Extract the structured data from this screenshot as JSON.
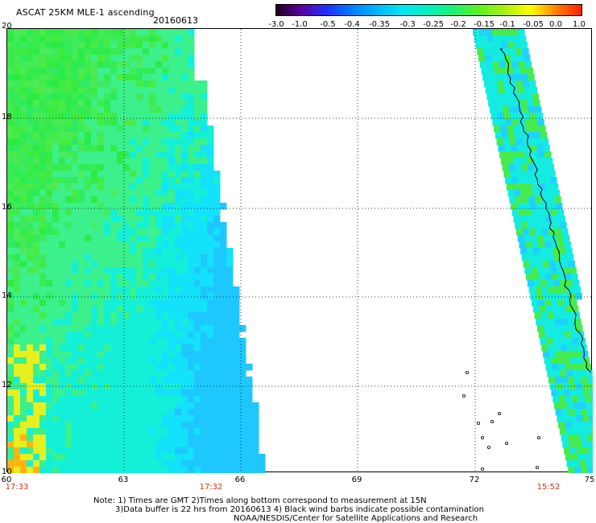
{
  "header": {
    "title": "ASCAT 25KM MLE-1 ascending",
    "date": "20160613"
  },
  "colorbar": {
    "labels": [
      "-3.0",
      "-1.0",
      "-0.5",
      "-0.4",
      "-0.35",
      "-0.3",
      "-0.25",
      "-0.2",
      "-0.15",
      "-0.1",
      "-0.05",
      "0.0",
      "1.0"
    ],
    "colors": [
      "#200020",
      "#5a00a0",
      "#2030ff",
      "#0080ff",
      "#00b8ff",
      "#00e8f0",
      "#00f0c0",
      "#20f070",
      "#60f020",
      "#b0f010",
      "#ffff00",
      "#ff8000",
      "#ff2000"
    ]
  },
  "map": {
    "lat_labels": [
      "20",
      "18",
      "16",
      "14",
      "12",
      "10"
    ],
    "lon_labels": [
      "60",
      "63",
      "66",
      "69",
      "72",
      "75"
    ],
    "pass_times": [
      "17:33",
      "17:32",
      "15:52"
    ]
  },
  "notes": {
    "line1": "Note: 1) Times are GMT 2)Times along bottom correspond to measurement at 15N",
    "line2": "3)Data buffer is 22 hrs from 20160613 4) Black wind barbs indicate possible contamination",
    "line3": "NOAA/NESDIS/Center for Satellite Applications and Research"
  }
}
